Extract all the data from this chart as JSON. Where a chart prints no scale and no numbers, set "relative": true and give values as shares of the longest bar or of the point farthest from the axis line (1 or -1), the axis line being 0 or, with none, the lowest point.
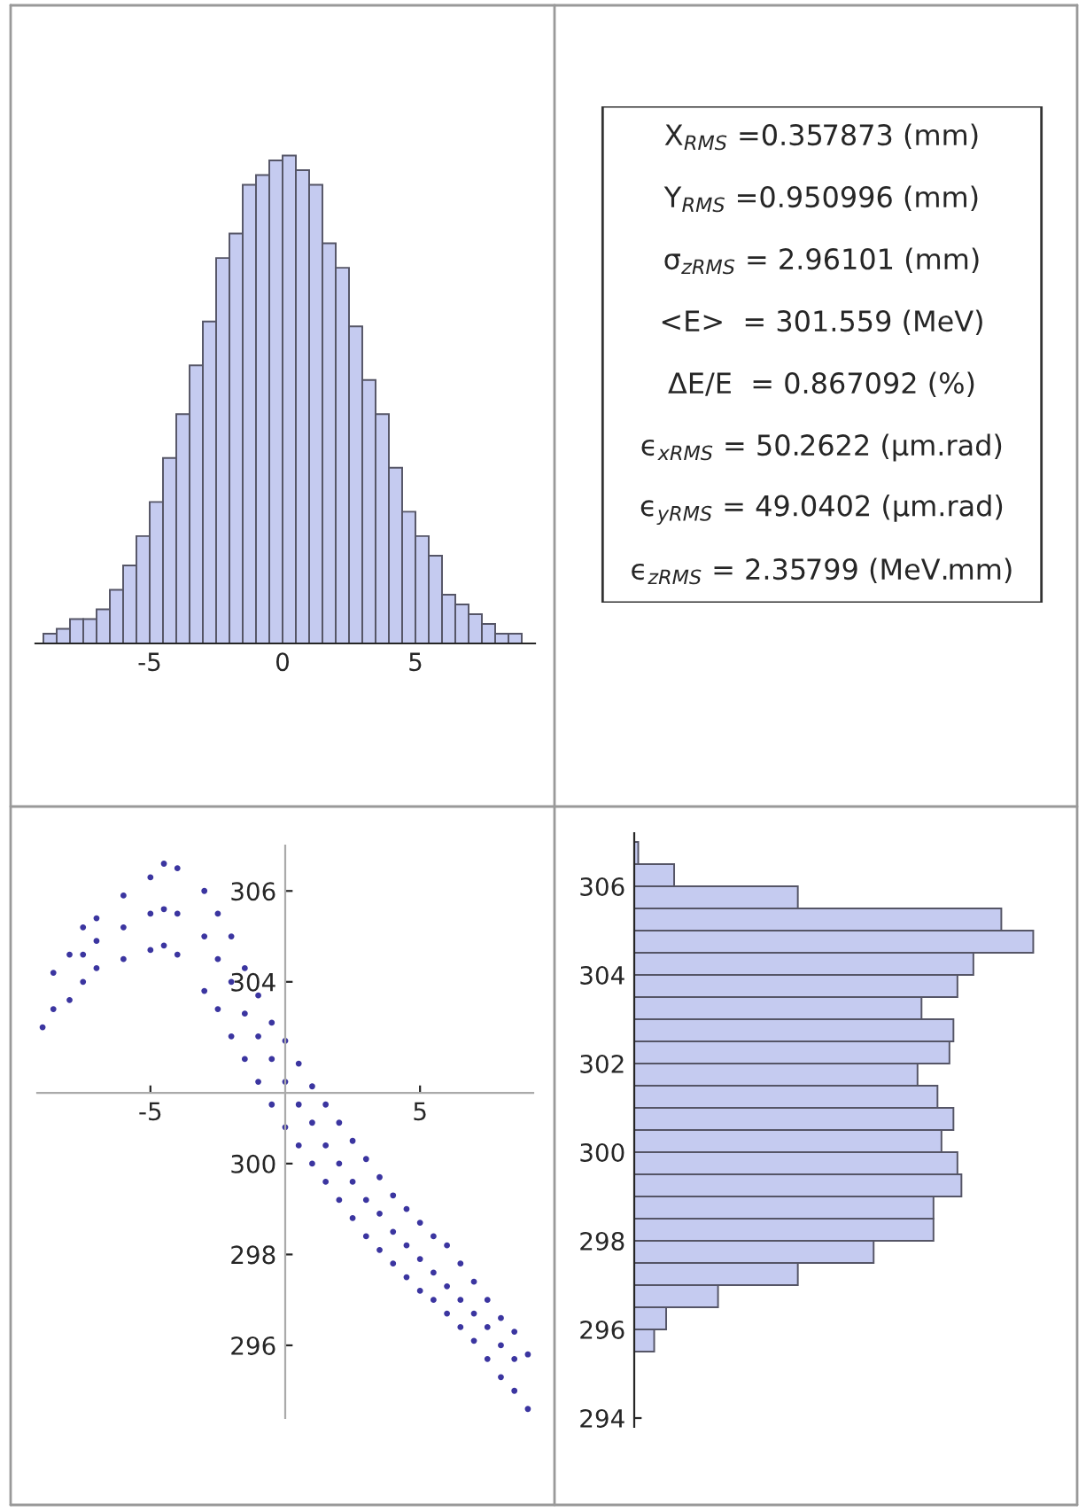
{
  "chart_data": [
    {
      "type": "bar",
      "relative": true,
      "color": "#c5cbf0",
      "xlim": [
        -9.3,
        9.5
      ],
      "xticks": [
        -5,
        0,
        5
      ],
      "tick_labels": "x",
      "x": [
        -8.75,
        -8.25,
        -7.75,
        -7.25,
        -6.75,
        -6.25,
        -5.75,
        -5.25,
        -4.75,
        -4.25,
        -3.75,
        -3.25,
        -2.75,
        -2.25,
        -1.75,
        -1.25,
        -0.75,
        -0.25,
        0.25,
        0.75,
        1.25,
        1.75,
        2.25,
        2.75,
        3.25,
        3.75,
        4.25,
        4.75,
        5.25,
        5.75,
        6.25,
        6.75,
        7.25,
        7.75,
        8.25,
        8.75
      ],
      "values": [
        0.02,
        0.03,
        0.05,
        0.05,
        0.07,
        0.11,
        0.16,
        0.22,
        0.29,
        0.38,
        0.47,
        0.57,
        0.66,
        0.79,
        0.84,
        0.94,
        0.96,
        0.99,
        1,
        0.97,
        0.94,
        0.82,
        0.77,
        0.65,
        0.54,
        0.47,
        0.36,
        0.27,
        0.22,
        0.18,
        0.1,
        0.08,
        0.06,
        0.04,
        0.02,
        0.02
      ]
    },
    {
      "type": "other",
      "annotations": [
        "X$_{RMS}$ =0.357873 (mm)",
        "Y$_{RMS}$ =0.950996 (mm)",
        "σ$_{zRMS}$ = 2.96101 (mm)",
        "<E>  = 301.559 (MeV)",
        "ΔE/E  = 0.867092 (%)",
        "ϵ$_{xRMS}$ = 50.2622 (μm.rad)",
        "ϵ$_{yRMS}$ = 49.0402 (μm.rad)",
        "ϵ$_{zRMS}$ = 2.35799 (MeV.mm)"
      ]
    },
    {
      "type": "scatter",
      "color": "#3b35a0",
      "xlim": [
        -9.2,
        9.2
      ],
      "ylim": [
        294.4,
        307
      ],
      "xticks": [
        -5,
        5
      ],
      "yticks": [
        296,
        298,
        300,
        304,
        306
      ],
      "x": [
        -9.0,
        -8.6,
        -8.6,
        -8,
        -8,
        -7.5,
        -7.5,
        -7.5,
        -7,
        -7,
        -7,
        -6,
        -6,
        -6,
        -5,
        -5,
        -5,
        -4.5,
        -4.5,
        -4.5,
        -4,
        -4,
        -4,
        -3,
        -3,
        -3,
        -2.5,
        -2.5,
        -2.5,
        -2,
        -2,
        -2,
        -1.5,
        -1.5,
        -1.5,
        -1,
        -1,
        -1,
        -0.5,
        -0.5,
        -0.5,
        0,
        0,
        0,
        0.5,
        0.5,
        0.5,
        1,
        1,
        1,
        1.5,
        1.5,
        1.5,
        2,
        2,
        2,
        2.5,
        2.5,
        2.5,
        3,
        3,
        3,
        3.5,
        3.5,
        3.5,
        4,
        4,
        4,
        4.5,
        4.5,
        4.5,
        5,
        5,
        5,
        5.5,
        5.5,
        5.5,
        6,
        6,
        6,
        6.5,
        6.5,
        6.5,
        7,
        7,
        7,
        7.5,
        7.5,
        7.5,
        8,
        8,
        8,
        8.5,
        8.5,
        8.5,
        9,
        9
      ],
      "values": [
        303.0,
        304.2,
        303.4,
        304.6,
        303.6,
        305.2,
        304.0,
        304.6,
        305.4,
        304.3,
        304.9,
        305.9,
        304.5,
        305.2,
        306.3,
        304.7,
        305.5,
        306.6,
        304.8,
        305.6,
        306.5,
        304.6,
        305.5,
        306.0,
        303.8,
        305.0,
        305.5,
        303.4,
        304.5,
        305.0,
        302.8,
        304.0,
        304.3,
        302.3,
        303.3,
        303.7,
        301.8,
        302.8,
        303.1,
        301.3,
        302.3,
        302.7,
        300.8,
        301.8,
        302.2,
        300.4,
        301.3,
        301.7,
        300.0,
        300.9,
        301.3,
        299.6,
        300.4,
        300.9,
        299.2,
        300.0,
        300.5,
        298.8,
        299.6,
        300.1,
        298.4,
        299.2,
        299.7,
        298.1,
        298.9,
        299.3,
        297.8,
        298.5,
        299.0,
        297.5,
        298.2,
        298.7,
        297.2,
        297.9,
        298.4,
        297.0,
        297.6,
        298.2,
        296.7,
        297.3,
        297.8,
        296.4,
        297.0,
        297.4,
        296.1,
        296.7,
        297.0,
        295.7,
        296.4,
        296.6,
        295.3,
        296.0,
        296.3,
        295.0,
        295.7,
        295.8,
        294.6
      ]
    },
    {
      "type": "bar",
      "orientation": "horizontal",
      "relative": true,
      "color": "#c5cbf0",
      "ylim": [
        293.8,
        307.2
      ],
      "yticks": [
        294,
        296,
        298,
        300,
        302,
        304,
        306
      ],
      "tick_labels": "y",
      "x": [
        295.75,
        296.25,
        296.75,
        297.25,
        297.75,
        298.25,
        298.75,
        299.25,
        299.75,
        300.25,
        300.75,
        301.25,
        301.75,
        302.25,
        302.75,
        303.25,
        303.75,
        304.25,
        304.75,
        305.25,
        305.75,
        306.25,
        306.75
      ],
      "values": [
        0.05,
        0.08,
        0.21,
        0.41,
        0.6,
        0.75,
        0.75,
        0.82,
        0.81,
        0.77,
        0.8,
        0.76,
        0.71,
        0.79,
        0.8,
        0.72,
        0.81,
        0.85,
        1,
        0.92,
        0.41,
        0.1,
        0.01
      ]
    }
  ]
}
